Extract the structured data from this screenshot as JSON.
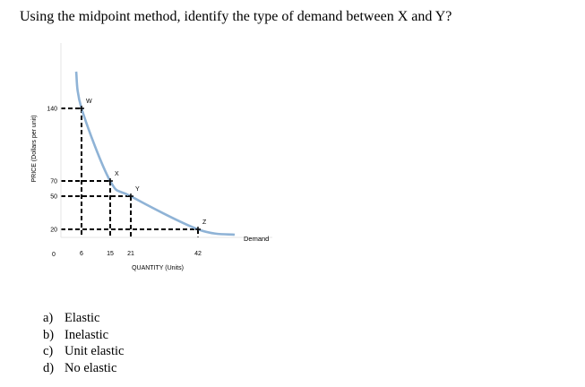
{
  "question": "Using the midpoint method, identify the type of demand between X and Y?",
  "options": [
    {
      "letter": "a)",
      "text": "Elastic"
    },
    {
      "letter": "b)",
      "text": "Inelastic"
    },
    {
      "letter": "c)",
      "text": "Unit elastic"
    },
    {
      "letter": "d)",
      "text": "No elastic"
    }
  ],
  "chart_data": {
    "type": "line",
    "xlabel": "QUANTITY (Units)",
    "ylabel": "PRICE (Dollars per unit)",
    "origin_label": "0",
    "x_ticks": [
      "6",
      "15",
      "21",
      "42"
    ],
    "y_ticks": [
      "140",
      "70",
      "50",
      "20"
    ],
    "series": [
      {
        "name": "Demand",
        "color": "#8fb3d6",
        "points": [
          {
            "label": "W",
            "x": 6,
            "y": 140
          },
          {
            "label": "X",
            "x": 15,
            "y": 70
          },
          {
            "label": "Y",
            "x": 21,
            "y": 50
          },
          {
            "label": "Z",
            "x": 42,
            "y": 20
          }
        ]
      }
    ],
    "grid": false,
    "guide_lines": "dashed"
  }
}
